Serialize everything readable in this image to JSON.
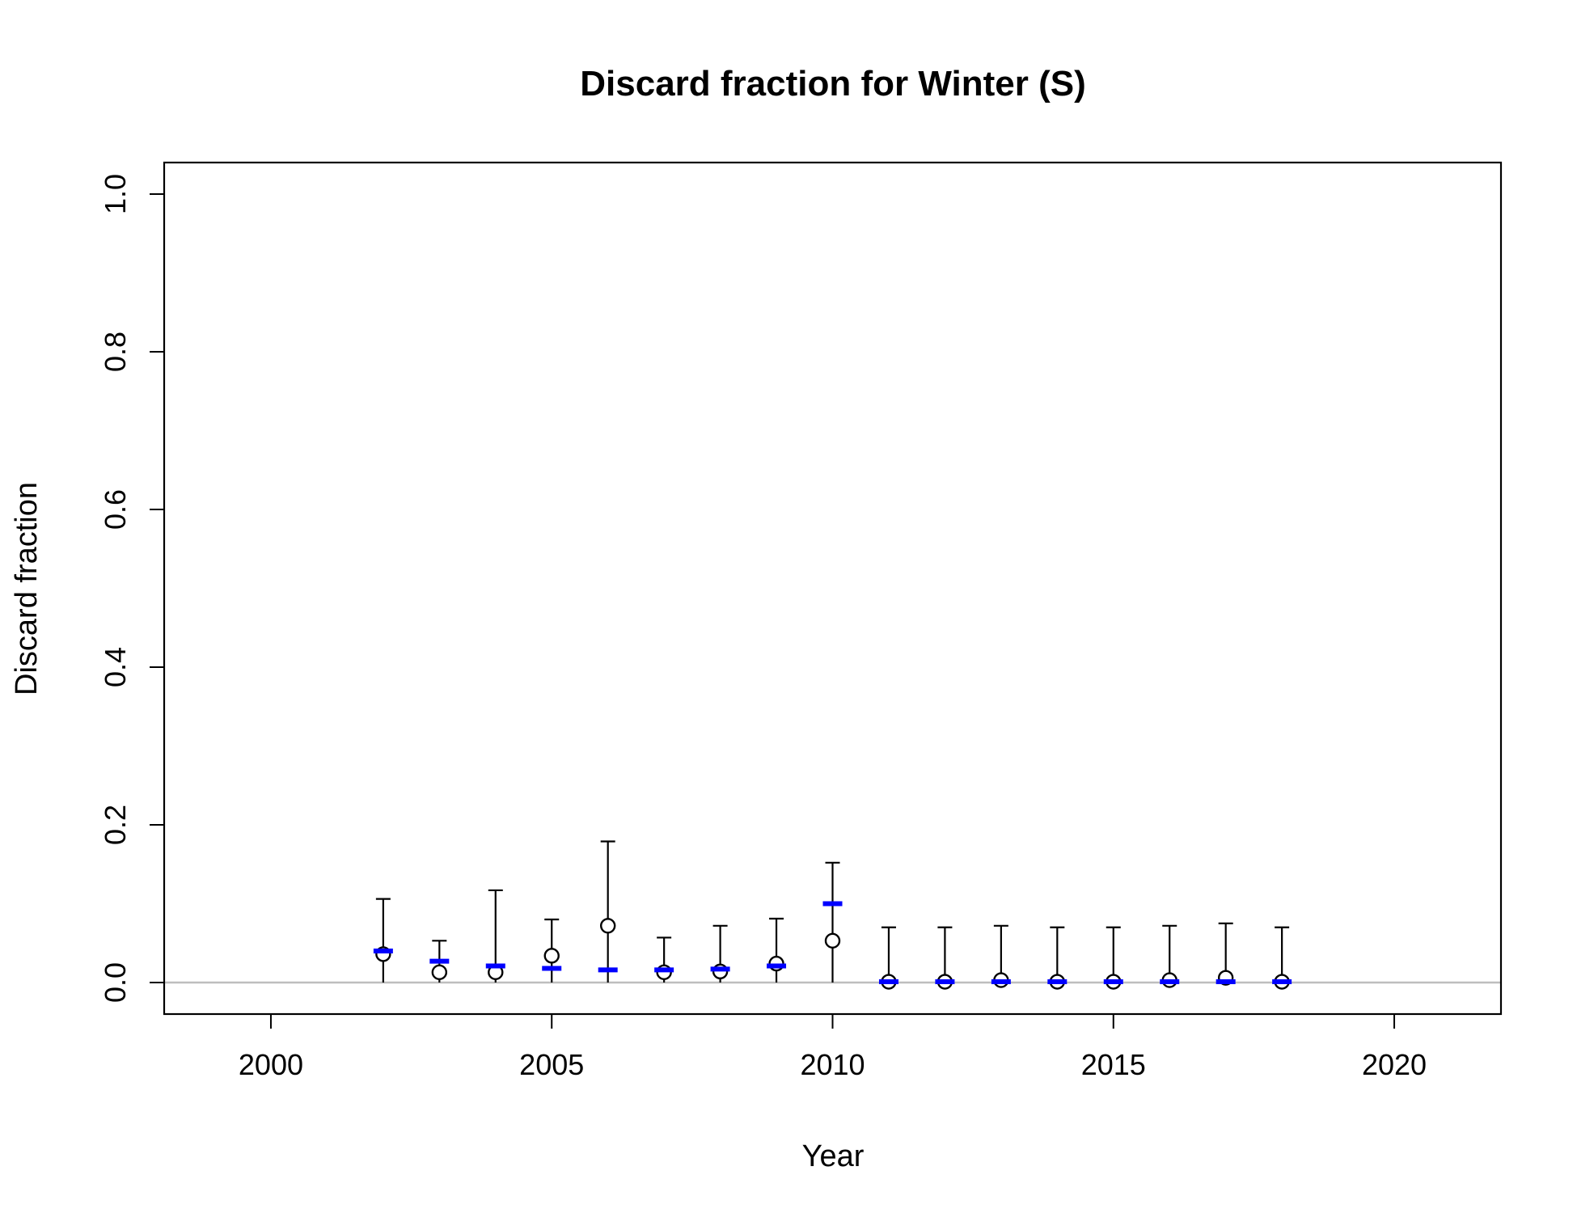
{
  "chart_data": {
    "type": "scatter",
    "title": "Discard fraction for Winter (S)",
    "xlabel": "Year",
    "ylabel": "Discard fraction",
    "xlim": [
      1998.1,
      2021.9
    ],
    "ylim": [
      -0.04,
      1.04
    ],
    "xticks": [
      2000,
      2005,
      2010,
      2015,
      2020
    ],
    "yticks": [
      0.0,
      0.2,
      0.4,
      0.6,
      0.8,
      1.0
    ],
    "ytick_labels": [
      "0.0",
      "0.2",
      "0.4",
      "0.6",
      "0.8",
      "1.0"
    ],
    "reference_line": 0,
    "colors": {
      "observed": "#000000",
      "expected": "#0000ff",
      "reference": "#bebebe"
    },
    "series": [
      {
        "marker": "open-circle",
        "years": [
          2002,
          2003,
          2004,
          2005,
          2006,
          2007,
          2008,
          2009,
          2010,
          2011,
          2012,
          2013,
          2014,
          2015,
          2016,
          2017,
          2018
        ],
        "values": [
          0.036,
          0.013,
          0.013,
          0.034,
          0.072,
          0.013,
          0.014,
          0.024,
          0.053,
          0.001,
          0.001,
          0.003,
          0.001,
          0.001,
          0.003,
          0.006,
          0.001
        ],
        "upper": [
          0.106,
          0.053,
          0.117,
          0.08,
          0.179,
          0.057,
          0.072,
          0.081,
          0.152,
          0.07,
          0.07,
          0.072,
          0.07,
          0.07,
          0.072,
          0.075,
          0.07
        ]
      },
      {
        "marker": "dash",
        "years": [
          2002,
          2003,
          2004,
          2005,
          2006,
          2007,
          2008,
          2009,
          2010,
          2011,
          2012,
          2013,
          2014,
          2015,
          2016,
          2017,
          2018
        ],
        "values": [
          0.04,
          0.027,
          0.021,
          0.018,
          0.016,
          0.016,
          0.017,
          0.021,
          0.1,
          0.001,
          0.001,
          0.001,
          0.001,
          0.001,
          0.001,
          0.001,
          0.001
        ]
      }
    ]
  }
}
